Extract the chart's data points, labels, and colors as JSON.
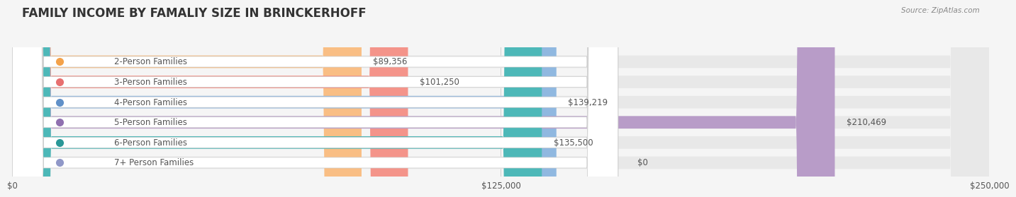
{
  "title": "FAMILY INCOME BY FAMALIY SIZE IN BRINCKERHOFF",
  "source": "Source: ZipAtlas.com",
  "categories": [
    "2-Person Families",
    "3-Person Families",
    "4-Person Families",
    "5-Person Families",
    "6-Person Families",
    "7+ Person Families"
  ],
  "values": [
    89356,
    101250,
    139219,
    210469,
    135500,
    0
  ],
  "bar_colors": [
    "#F9BE84",
    "#F4948A",
    "#90B8E0",
    "#B89CC8",
    "#4DB8B8",
    "#C8CCE8"
  ],
  "dot_colors": [
    "#F4A24A",
    "#E87070",
    "#6090C8",
    "#9070B0",
    "#2A9898",
    "#9098C8"
  ],
  "value_labels": [
    "$89,356",
    "$101,250",
    "$139,219",
    "$210,469",
    "$135,500",
    "$0"
  ],
  "xlim": [
    0,
    250000
  ],
  "xticks": [
    0,
    125000,
    250000
  ],
  "xticklabels": [
    "$0",
    "$125,000",
    "$250,000"
  ],
  "bg_color": "#f5f5f5",
  "bar_bg_color": "#e8e8e8",
  "title_color": "#333333",
  "label_color": "#555555",
  "value_color_inside": "#ffffff",
  "value_color_outside": "#555555"
}
